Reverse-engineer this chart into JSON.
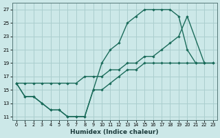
{
  "xlabel": "Humidex (Indice chaleur)",
  "bg_color": "#cce8e8",
  "grid_color": "#aacece",
  "line_color": "#1a6b5a",
  "xlim": [
    -0.5,
    23.5
  ],
  "ylim": [
    10.5,
    28
  ],
  "xticks": [
    0,
    1,
    2,
    3,
    4,
    5,
    6,
    7,
    8,
    9,
    10,
    11,
    12,
    13,
    14,
    15,
    16,
    17,
    18,
    19,
    20,
    21,
    22,
    23
  ],
  "yticks": [
    11,
    13,
    15,
    17,
    19,
    21,
    23,
    25,
    27
  ],
  "line1_x": [
    0,
    1,
    2,
    3,
    4,
    5,
    6,
    7,
    8,
    9,
    10,
    11,
    12,
    13,
    14,
    15,
    16,
    17,
    18,
    19,
    20,
    21,
    22,
    23
  ],
  "line1_y": [
    16,
    14,
    14,
    13,
    12,
    12,
    11,
    11,
    11,
    15,
    15,
    16,
    17,
    18,
    18,
    19,
    19,
    19,
    19,
    19,
    19,
    19,
    19,
    19
  ],
  "line2_x": [
    0,
    1,
    2,
    3,
    4,
    5,
    6,
    7,
    8,
    9,
    10,
    11,
    12,
    13,
    14,
    15,
    16,
    17,
    18,
    19,
    20,
    21,
    22
  ],
  "line2_y": [
    16,
    14,
    14,
    13,
    12,
    12,
    11,
    11,
    11,
    15,
    19,
    21,
    22,
    25,
    26,
    27,
    27,
    27,
    27,
    26,
    21,
    19,
    19
  ],
  "line3_x": [
    0,
    1,
    2,
    3,
    4,
    5,
    6,
    7,
    8,
    9,
    10,
    11,
    12,
    13,
    14,
    15,
    16,
    17,
    18,
    19,
    20,
    22,
    23
  ],
  "line3_y": [
    16,
    16,
    16,
    16,
    16,
    16,
    16,
    16,
    17,
    17,
    17,
    18,
    18,
    19,
    19,
    20,
    20,
    21,
    22,
    23,
    26,
    19,
    19
  ]
}
